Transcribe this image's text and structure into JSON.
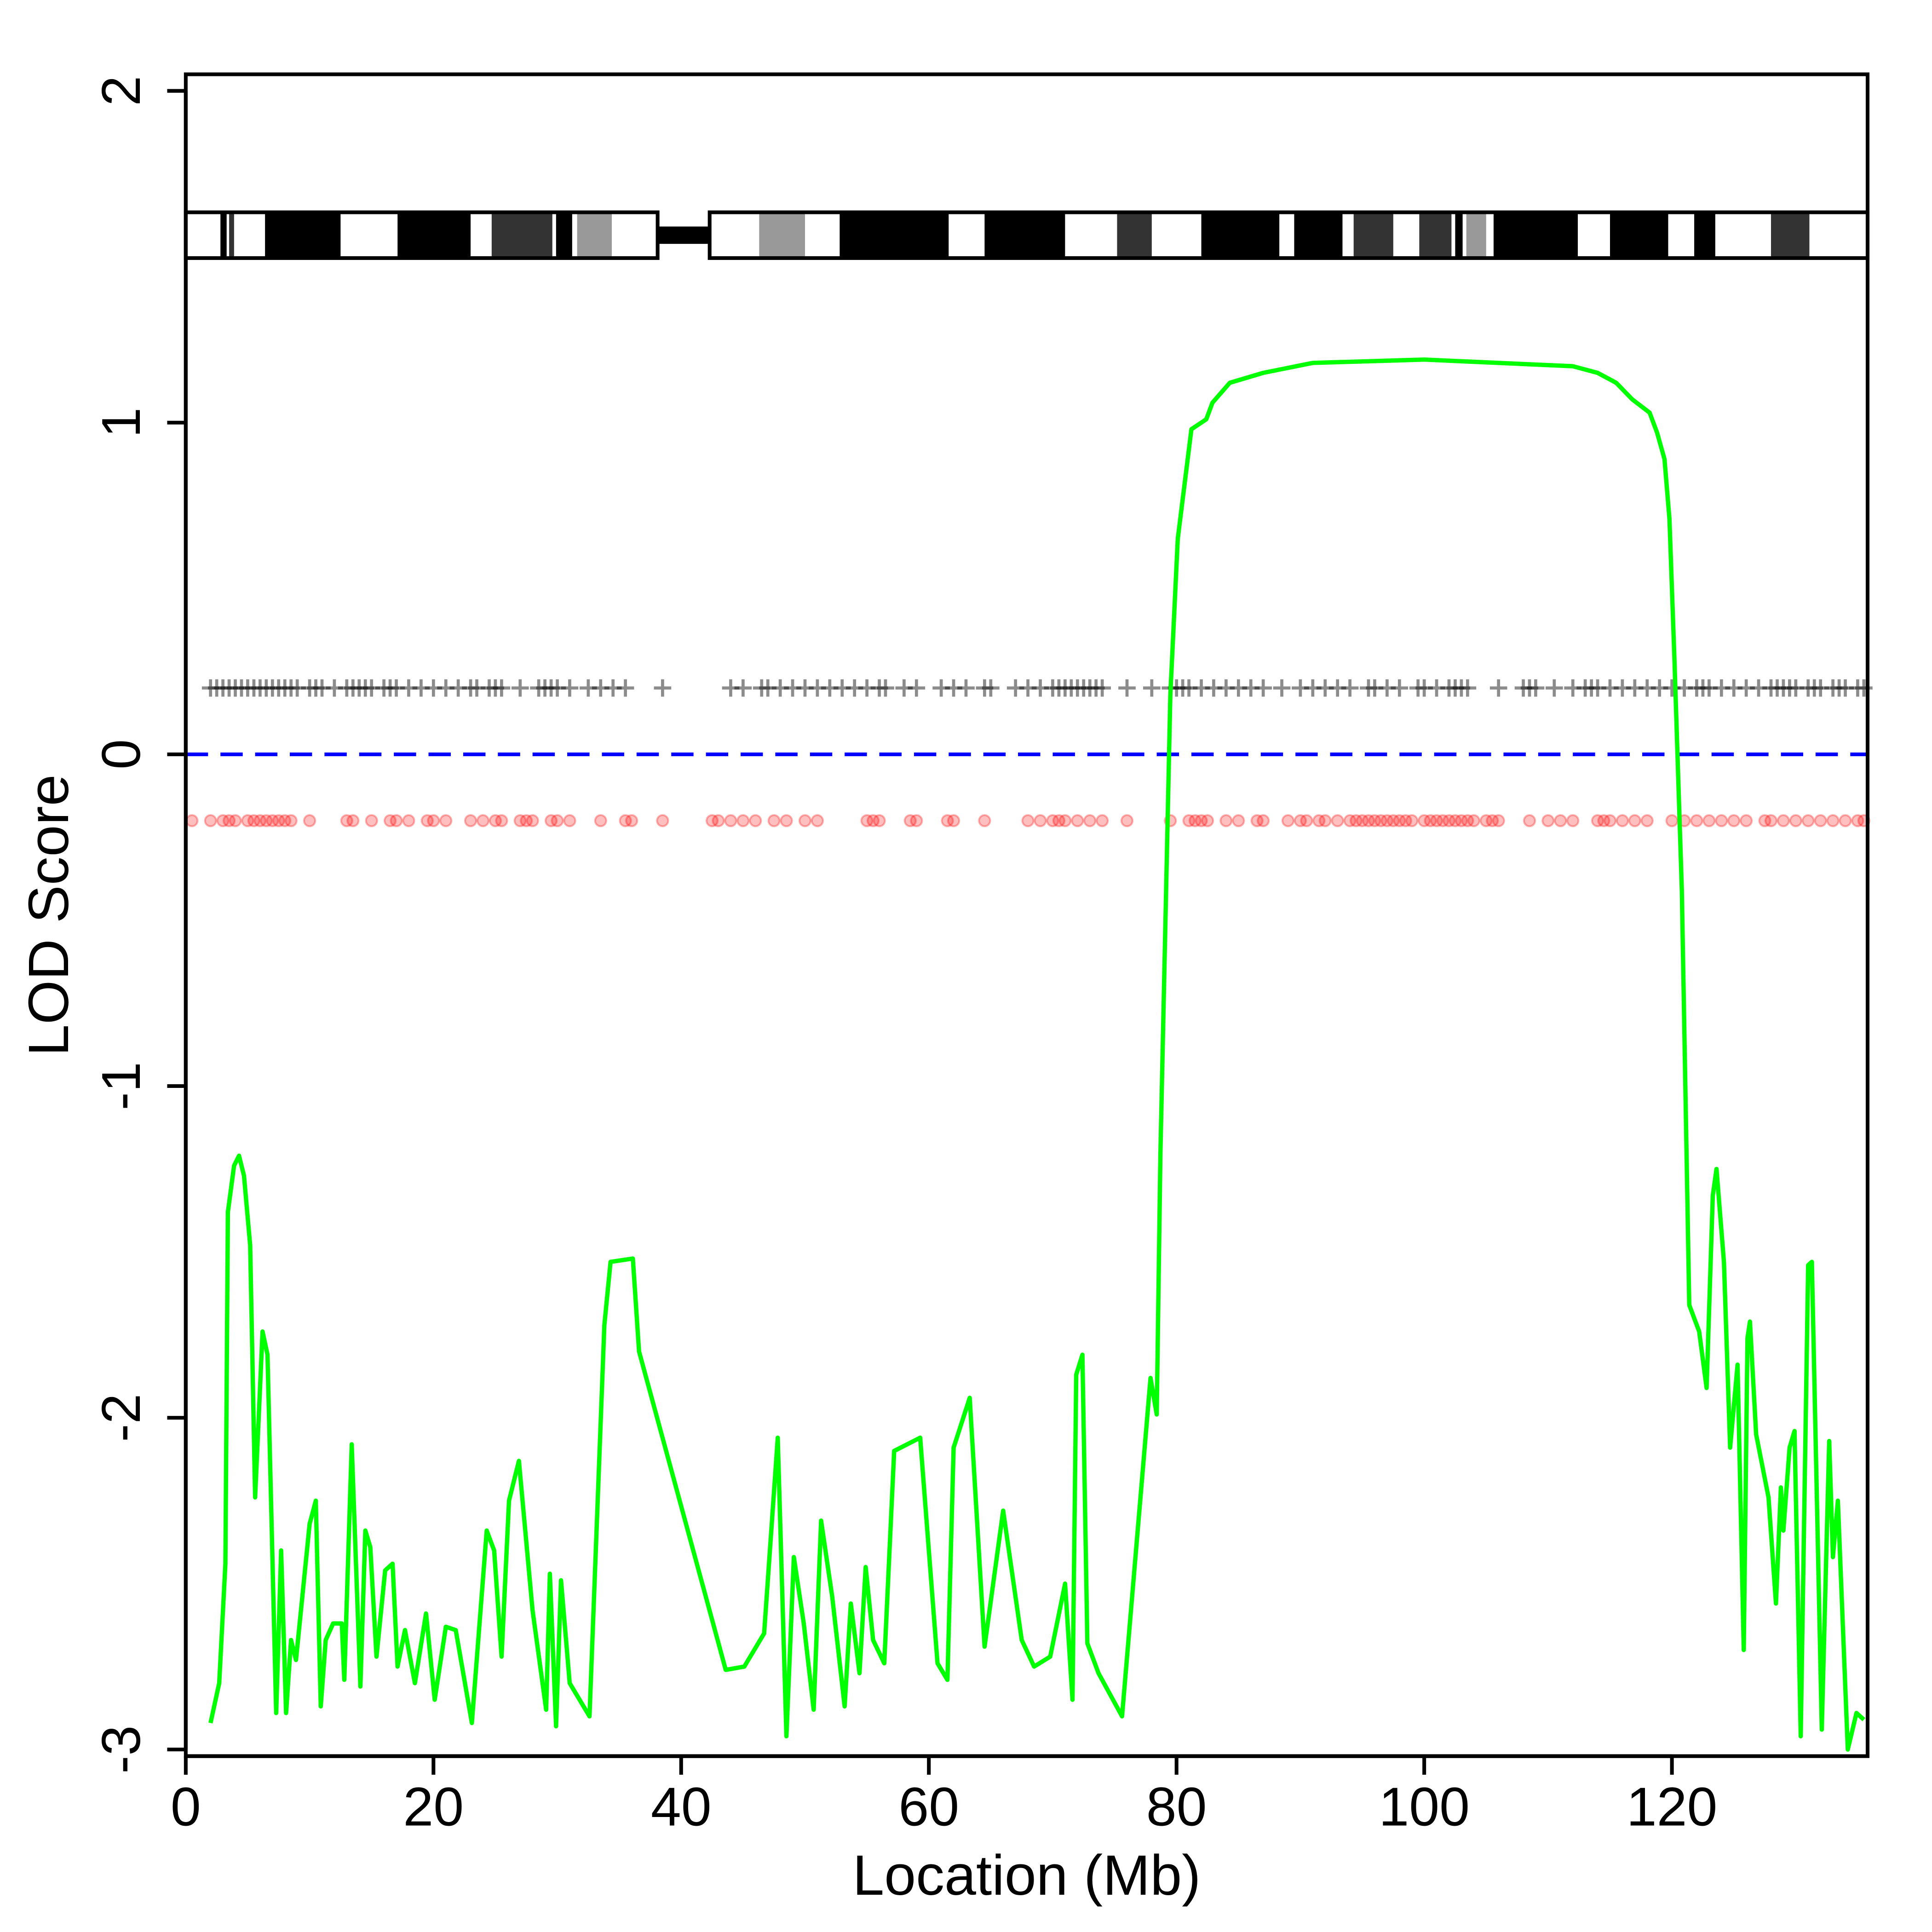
{
  "chart_data": {
    "type": "line",
    "xlabel": "Location (Mb)",
    "ylabel": "LOD Score",
    "xlim": [
      0,
      135.8
    ],
    "ylim": [
      -3.02,
      2.05
    ],
    "xticks": [
      0,
      20,
      40,
      60,
      80,
      100,
      120
    ],
    "yticks": [
      -3,
      -2,
      -1,
      0,
      1,
      2
    ],
    "hline": {
      "value": 0,
      "color": "#0000ff"
    },
    "series": [
      {
        "color": "#00ff00",
        "x": [
          2.0,
          2.7,
          3.2,
          3.4,
          3.9,
          4.3,
          4.7,
          5.2,
          5.6,
          6.2,
          6.6,
          7.3,
          7.7,
          8.1,
          8.5,
          8.9,
          10.0,
          10.5,
          10.9,
          11.3,
          11.9,
          12.6,
          12.8,
          13.4,
          14.1,
          14.5,
          14.9,
          15.4,
          16.1,
          16.7,
          17.1,
          17.7,
          18.5,
          19.4,
          20.1,
          21.0,
          21.8,
          23.1,
          24.3,
          24.9,
          25.5,
          26.1,
          26.9,
          28.0,
          29.1,
          29.4,
          29.9,
          30.3,
          31.0,
          32.6,
          33.8,
          34.3,
          36.1,
          36.6,
          43.6,
          45.1,
          46.7,
          47.8,
          48.5,
          49.1,
          49.9,
          50.7,
          51.3,
          52.2,
          53.2,
          53.7,
          54.4,
          54.9,
          55.5,
          56.4,
          57.2,
          59.3,
          60.7,
          61.5,
          62.0,
          63.3,
          64.5,
          66.0,
          67.5,
          68.5,
          69.8,
          71.0,
          71.6,
          71.9,
          72.4,
          72.8,
          73.7,
          75.6,
          77.9,
          78.4,
          78.7,
          79.5,
          80.1,
          81.2,
          82.4,
          82.9,
          84.3,
          87.0,
          91.0,
          100,
          112,
          114,
          115.5,
          116.8,
          118.2,
          118.8,
          119.4,
          119.8,
          120.2,
          120.8,
          121.4,
          122.2,
          122.8,
          123.3,
          123.6,
          124.2,
          124.7,
          125.3,
          125.8,
          126.1,
          126.3,
          126.8,
          127.8,
          128.4,
          128.8,
          129.0,
          129.5,
          129.9,
          130.4,
          131.0,
          131.3,
          132.1,
          132.7,
          133.0,
          133.4,
          134.2,
          134.9,
          135.5
        ],
        "values": [
          -2.92,
          -2.8,
          -2.44,
          -1.38,
          -1.24,
          -1.21,
          -1.27,
          -1.48,
          -2.24,
          -1.74,
          -1.81,
          -2.89,
          -2.4,
          -2.89,
          -2.67,
          -2.73,
          -2.32,
          -2.25,
          -2.87,
          -2.67,
          -2.62,
          -2.62,
          -2.79,
          -2.08,
          -2.81,
          -2.34,
          -2.39,
          -2.72,
          -2.46,
          -2.44,
          -2.75,
          -2.64,
          -2.8,
          -2.59,
          -2.85,
          -2.63,
          -2.64,
          -2.92,
          -2.34,
          -2.4,
          -2.72,
          -2.25,
          -2.13,
          -2.58,
          -2.88,
          -2.47,
          -2.93,
          -2.49,
          -2.8,
          -2.9,
          -1.72,
          -1.53,
          -1.52,
          -1.8,
          -2.76,
          -2.75,
          -2.65,
          -2.06,
          -2.96,
          -2.42,
          -2.62,
          -2.88,
          -2.31,
          -2.54,
          -2.87,
          -2.56,
          -2.77,
          -2.45,
          -2.67,
          -2.74,
          -2.1,
          -2.06,
          -2.74,
          -2.79,
          -2.09,
          -1.94,
          -2.69,
          -2.28,
          -2.67,
          -2.75,
          -2.72,
          -2.5,
          -2.85,
          -1.87,
          -1.81,
          -2.68,
          -2.77,
          -2.9,
          -1.88,
          -1.99,
          -1.2,
          0.18,
          0.65,
          0.98,
          1.01,
          1.06,
          1.12,
          1.15,
          1.18,
          1.19,
          1.17,
          1.15,
          1.12,
          1.07,
          1.03,
          0.97,
          0.89,
          0.71,
          0.29,
          -0.41,
          -1.66,
          -1.74,
          -1.91,
          -1.33,
          -1.25,
          -1.53,
          -2.09,
          -1.84,
          -2.7,
          -1.76,
          -1.71,
          -2.05,
          -2.24,
          -2.56,
          -2.21,
          -2.34,
          -2.09,
          -2.04,
          -2.96,
          -1.54,
          -1.53,
          -2.94,
          -2.07,
          -2.42,
          -2.25,
          -3.0,
          -2.89,
          -2.91
        ]
      }
    ],
    "markers": [
      {
        "shape": "cross",
        "color": "#000000",
        "y": 0.2,
        "x": [
          2,
          2.5,
          3,
          3.5,
          4,
          4.5,
          5,
          5.5,
          6,
          6.5,
          7,
          7.5,
          8,
          8.5,
          9,
          10,
          10.5,
          11,
          12,
          13,
          13.5,
          14,
          14.5,
          15,
          16,
          16.5,
          17,
          18,
          19,
          20,
          21,
          22,
          23,
          23.5,
          24.5,
          25,
          25.5,
          27,
          28.5,
          29,
          29.5,
          30,
          31,
          32.5,
          33.5,
          34.5,
          35.5,
          38.5,
          44,
          45,
          46.5,
          47,
          48,
          49,
          50,
          51,
          52,
          53,
          54,
          55,
          56,
          56.5,
          58,
          59,
          61,
          62,
          63,
          64.5,
          65,
          67,
          68,
          69,
          70,
          70.5,
          71,
          71.5,
          72,
          72.5,
          73,
          73.5,
          74,
          76,
          78,
          79.5,
          80,
          80.5,
          81,
          82,
          83,
          84,
          85,
          86,
          87,
          88.5,
          90,
          91,
          92,
          93,
          94,
          95.5,
          96,
          97,
          98,
          99.5,
          100,
          101,
          102,
          102.5,
          103,
          103.5,
          106,
          108,
          108.5,
          109,
          110.5,
          112,
          113,
          113.5,
          114,
          115,
          116,
          117,
          118,
          119,
          120,
          121,
          122,
          122.5,
          123,
          124,
          125,
          126,
          127,
          128,
          128.5,
          129,
          129.5,
          130,
          131,
          131.5,
          132,
          133,
          133.5,
          134,
          135,
          135.5
        ]
      },
      {
        "shape": "circle",
        "color": "#ff0000",
        "y": -0.2,
        "x": [
          0.5,
          2,
          3,
          3.5,
          4,
          5,
          5.5,
          6,
          6.5,
          7,
          7.5,
          8,
          8.5,
          10,
          13,
          13.5,
          15,
          16.5,
          17,
          18,
          19.5,
          20,
          21,
          23,
          24,
          25,
          25.5,
          27,
          27.5,
          28,
          29.5,
          30,
          31,
          33.5,
          35.5,
          36,
          38.5,
          42.5,
          43,
          44,
          45,
          46,
          47.5,
          48.5,
          50,
          51,
          55,
          55.5,
          56,
          58.5,
          59,
          61.5,
          62,
          64.5,
          68,
          69,
          70,
          70.5,
          71,
          72,
          73,
          74,
          76,
          79.5,
          81,
          81.5,
          82,
          82.5,
          84,
          85,
          86.5,
          87,
          89,
          90,
          90.5,
          91.5,
          92,
          93,
          94,
          94.5,
          95,
          95.5,
          96,
          96.5,
          97,
          97.5,
          98,
          98.5,
          99,
          100,
          100.5,
          101,
          101.5,
          102,
          102.5,
          103,
          103.5,
          104,
          105,
          105.5,
          106,
          108.5,
          110,
          111,
          112,
          114,
          114.5,
          115,
          116,
          117,
          118,
          120,
          121,
          122,
          123,
          124,
          125,
          126,
          127.5,
          128,
          129,
          130,
          131,
          132,
          133,
          134,
          135,
          135.5
        ]
      }
    ],
    "ideogram": {
      "ylim": [
        1.496,
        1.634
      ],
      "arms": [
        {
          "start": 0,
          "end": 38.1
        },
        {
          "start": 42.3,
          "end": 135.8
        }
      ],
      "bands": [
        {
          "start": 2.8,
          "end": 3.3,
          "color": "#000000"
        },
        {
          "start": 3.5,
          "end": 3.9,
          "color": "#333333"
        },
        {
          "start": 6.4,
          "end": 12.5,
          "color": "#000000"
        },
        {
          "start": 17.1,
          "end": 23.0,
          "color": "#000000"
        },
        {
          "start": 24.7,
          "end": 29.6,
          "color": "#333333"
        },
        {
          "start": 29.9,
          "end": 31.2,
          "color": "#000000"
        },
        {
          "start": 31.6,
          "end": 34.4,
          "color": "#999999"
        },
        {
          "start": 46.3,
          "end": 50.0,
          "color": "#999999"
        },
        {
          "start": 52.8,
          "end": 61.6,
          "color": "#000000"
        },
        {
          "start": 64.5,
          "end": 71.0,
          "color": "#000000"
        },
        {
          "start": 75.2,
          "end": 78.0,
          "color": "#333333"
        },
        {
          "start": 82.0,
          "end": 88.3,
          "color": "#000000"
        },
        {
          "start": 89.5,
          "end": 93.4,
          "color": "#000000"
        },
        {
          "start": 94.3,
          "end": 97.5,
          "color": "#333333"
        },
        {
          "start": 99.6,
          "end": 102.2,
          "color": "#333333"
        },
        {
          "start": 102.5,
          "end": 103.1,
          "color": "#000000"
        },
        {
          "start": 103.4,
          "end": 105.0,
          "color": "#999999"
        },
        {
          "start": 105.6,
          "end": 112.4,
          "color": "#000000"
        },
        {
          "start": 115.0,
          "end": 119.7,
          "color": "#000000"
        },
        {
          "start": 121.8,
          "end": 123.5,
          "color": "#000000"
        },
        {
          "start": 128.0,
          "end": 131.1,
          "color": "#333333"
        }
      ]
    }
  }
}
